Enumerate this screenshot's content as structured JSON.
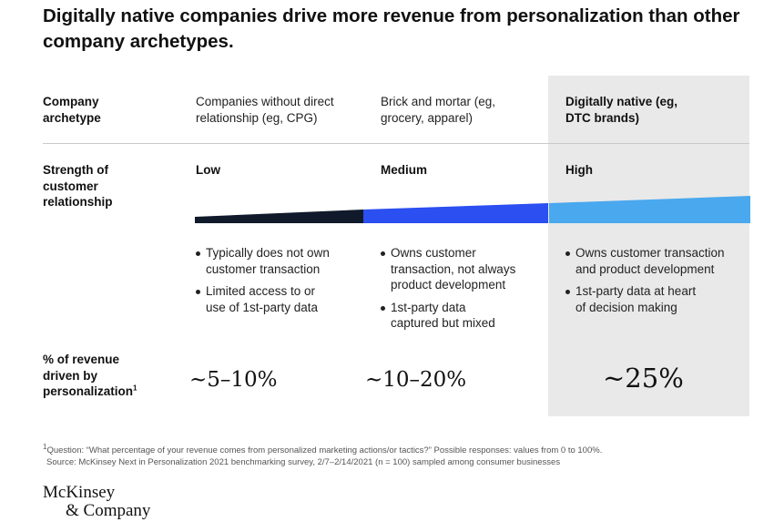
{
  "title": "Digitally native companies drive more revenue from personalization than other company archetypes.",
  "rows": {
    "archetype_label": [
      "Company",
      "archetype"
    ],
    "strength_label": [
      "Strength of",
      "customer",
      "relationship"
    ],
    "revenue_label": [
      "% of revenue",
      "driven by",
      "personalization"
    ],
    "revenue_label_sup": "1"
  },
  "columns": [
    {
      "archetype": [
        "Companies without direct",
        "relationship (eg, CPG)"
      ],
      "strength": "Low",
      "bullets": [
        [
          "Typically does not own",
          "customer transaction"
        ],
        [
          "Limited access to or",
          "use of 1st-party data"
        ]
      ],
      "revenue": "~5–10%",
      "color": "#101a2b"
    },
    {
      "archetype": [
        "Brick and mortar (eg,",
        "grocery, apparel)"
      ],
      "strength": "Medium",
      "bullets": [
        [
          "Owns customer",
          "transaction, not always",
          "product development"
        ],
        [
          "1st-party data",
          "captured but mixed"
        ]
      ],
      "revenue": "~10–20%",
      "color": "#2b4ff0"
    },
    {
      "archetype": [
        "Digitally native (eg,",
        "DTC brands)"
      ],
      "strength": "High",
      "bullets": [
        [
          "Owns customer transaction",
          "and product development"
        ],
        [
          "1st-party data at heart",
          "of decision making"
        ]
      ],
      "revenue": "~25%",
      "color": "#4aa8ee"
    }
  ],
  "footnote": {
    "sup": "1",
    "line1": "Question: “What percentage of your revenue comes from personalized marketing actions/or tactics?” Possible responses: values from 0 to 100%.",
    "line2": "Source: McKinsey Next in Personalization 2021 benchmarking survey, 2/7–2/14/2021 (n = 100) sampled among consumer businesses"
  },
  "logo": [
    "McKinsey",
    "& Company"
  ],
  "highlight_color": "#e9e9e9"
}
